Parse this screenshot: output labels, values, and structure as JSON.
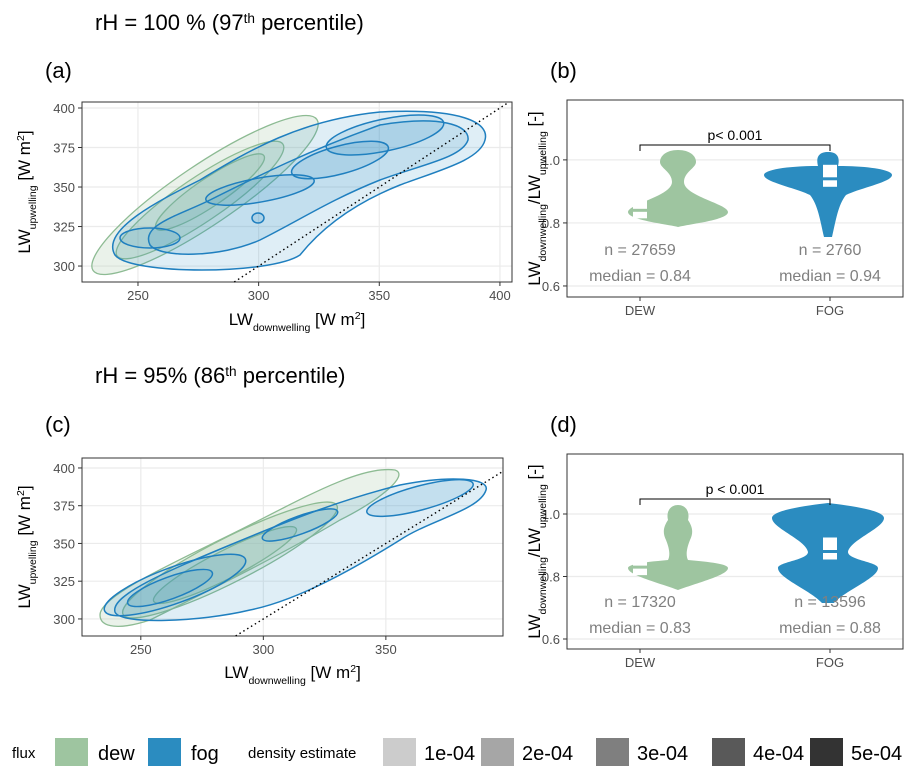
{
  "headings": [
    {
      "text": "rH = 100 % (97",
      "sup": "th",
      "rest": " percentile)"
    },
    {
      "text": "rH = 95% (86",
      "sup": "th",
      "rest": " percentile)"
    }
  ],
  "chart_data": [
    {
      "type": "contour",
      "label": "(a)",
      "xlabel": {
        "main": "LW",
        "sub": "downwelling",
        "unit": " [W m",
        "sup": "2",
        "close": "]"
      },
      "ylabel": {
        "main": "LW",
        "sub": "upwelling",
        "unit": " [W m",
        "sup": "2",
        "close": "]"
      },
      "xlim": [
        226.8,
        405
      ],
      "ylim": [
        289.9,
        403.8
      ],
      "xticks": [
        250,
        300,
        350,
        400
      ],
      "yticks": [
        300,
        325,
        350,
        375,
        400
      ],
      "grid": true
    },
    {
      "type": "violin",
      "label": "(b)",
      "ylabel": {
        "main": "LW",
        "sub": "downwelling",
        "mid": "/LW",
        "sub2": "upwelling",
        "unit": " [-]"
      },
      "categories": [
        "DEW",
        "FOG"
      ],
      "colors": [
        "#9ec5a0",
        "#2b8cc0"
      ],
      "values": [
        0.84,
        0.94
      ],
      "value_labels": [
        "median = 0.84",
        "median = 0.94"
      ],
      "n_labels": [
        "n = 27659",
        "n = 2760"
      ],
      "annotation": "p< 0.001",
      "ylim": [
        0.565,
        1.19
      ],
      "yticks": [
        0.6,
        0.8,
        {
          "value": 1.0,
          "label": "1.0"
        }
      ],
      "grid": true
    },
    {
      "type": "contour",
      "label": "(c)",
      "xlabel": {
        "main": "LW",
        "sub": "downwelling",
        "unit": " [W m",
        "sup": "2",
        "close": "]"
      },
      "ylabel": {
        "main": "LW",
        "sub": "upwelling",
        "unit": " [W m",
        "sup": "2",
        "close": "]"
      },
      "xlim": [
        226,
        397.8
      ],
      "ylim": [
        288.7,
        406.6
      ],
      "xticks": [
        250,
        300,
        350
      ],
      "yticks": [
        300,
        325,
        350,
        375,
        400
      ],
      "grid": true
    },
    {
      "type": "violin",
      "label": "(d)",
      "ylabel": {
        "main": "LW",
        "sub": "downwelling",
        "mid": "/LW",
        "sub2": "upwelling",
        "unit": " [-]"
      },
      "categories": [
        "DEW",
        "FOG"
      ],
      "colors": [
        "#9ec5a0",
        "#2b8cc0"
      ],
      "values": [
        0.83,
        0.88
      ],
      "value_labels": [
        "median = 0.83",
        "median = 0.88"
      ],
      "n_labels": [
        "n = 17320",
        "n = 13596"
      ],
      "annotation": "p < 0.001",
      "ylim": [
        0.568,
        1.192
      ],
      "yticks": [
        0.6,
        0.8,
        {
          "value": 1.0,
          "label": "1.0"
        }
      ],
      "grid": true
    }
  ],
  "legend": {
    "flux_title": "flux",
    "flux": [
      "dew",
      "fog"
    ],
    "flux_colors": [
      "#9ec5a0",
      "#2b8cc0"
    ],
    "density_title": "density estimate",
    "density": [
      "1e-04",
      "2e-04",
      "3e-04",
      "4e-04",
      "5e-04"
    ],
    "density_colors": [
      "#cccccc",
      "#a6a6a6",
      "#7f7f7f",
      "#595959",
      "#333333"
    ]
  }
}
